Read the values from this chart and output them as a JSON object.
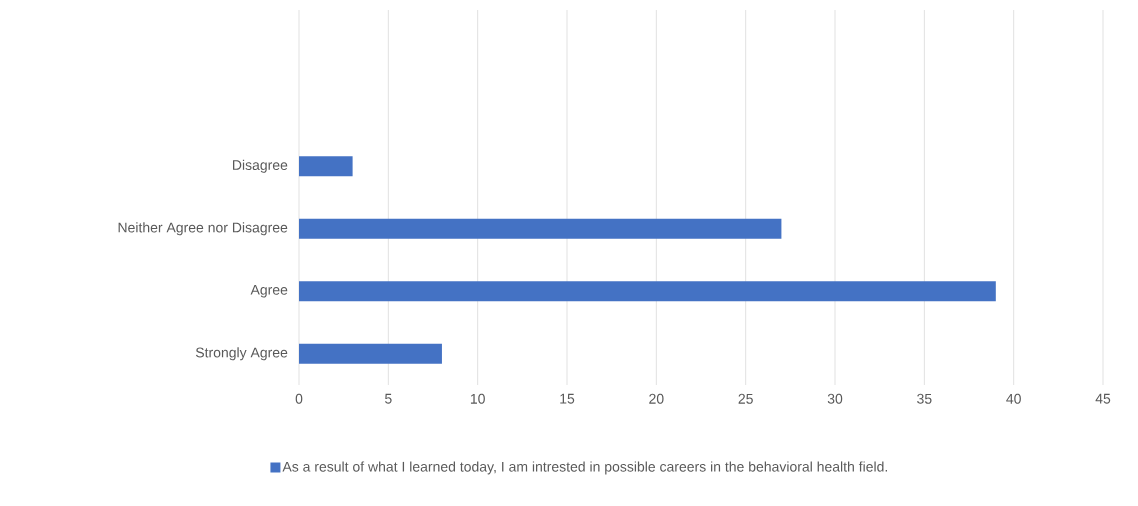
{
  "chart_data": {
    "type": "bar",
    "orientation": "horizontal",
    "categories": [
      null,
      null,
      "Disagree",
      "Neither Agree nor Disagree",
      "Agree",
      "Strongly Agree"
    ],
    "series": [
      {
        "name": "As a result of what I learned today, I am intrested in possible careers in the behavioral health field.",
        "color": "#4472c4",
        "values": [
          null,
          null,
          3,
          27,
          39,
          8
        ]
      }
    ],
    "xlim": [
      0,
      45
    ],
    "xticks": [
      0,
      5,
      10,
      15,
      20,
      25,
      30,
      35,
      40,
      45
    ],
    "grid": "x",
    "legend": "bottom"
  }
}
